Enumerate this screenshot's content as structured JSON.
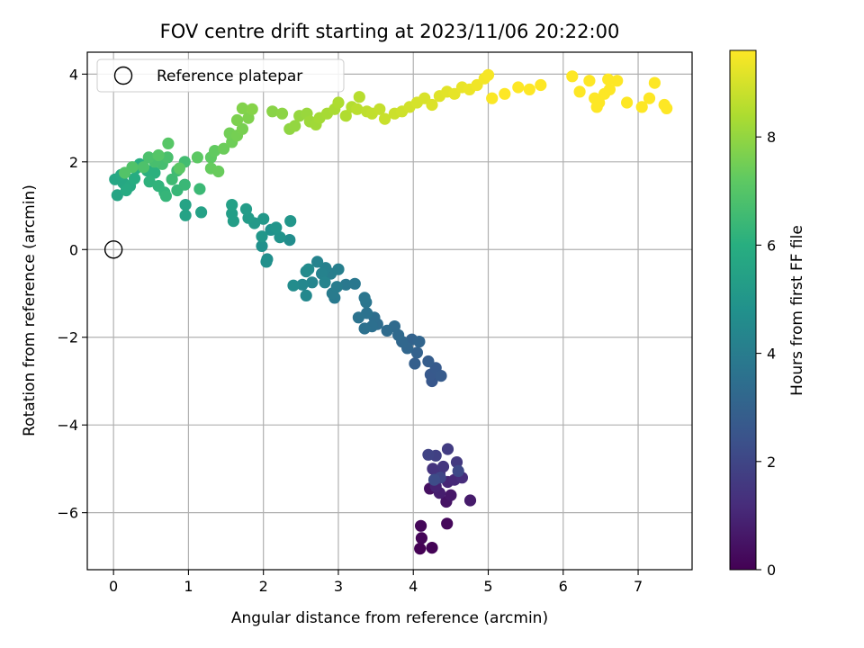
{
  "chart_data": {
    "type": "scatter",
    "title": "FOV centre drift starting at 2023/11/06 20:22:00",
    "xlabel": "Angular distance from reference (arcmin)",
    "ylabel": "Rotation from reference (arcmin)",
    "xlim": [
      -0.35,
      7.72
    ],
    "ylim": [
      -7.3,
      4.5
    ],
    "xticks": [
      0,
      1,
      2,
      3,
      4,
      5,
      6,
      7
    ],
    "yticks": [
      -6,
      -4,
      -2,
      0,
      2,
      4
    ],
    "grid": true,
    "legend": {
      "position": "top-left",
      "entries": [
        "Reference platepar"
      ]
    },
    "reference_point": {
      "label": "Reference platepar",
      "x": 0,
      "y": 0
    },
    "colorbar": {
      "label": "Hours from first FF file",
      "range": [
        0,
        9.6
      ],
      "ticks": [
        0,
        2,
        4,
        6,
        8
      ],
      "colormap": "viridis"
    },
    "points": [
      [
        4.09,
        -6.82,
        0.0
      ],
      [
        4.25,
        -6.8,
        0.05
      ],
      [
        4.11,
        -6.58,
        0.1
      ],
      [
        4.1,
        -6.3,
        0.15
      ],
      [
        4.45,
        -6.25,
        0.2
      ],
      [
        4.22,
        -5.45,
        0.4
      ],
      [
        4.44,
        -5.75,
        0.5
      ],
      [
        4.5,
        -5.6,
        0.6
      ],
      [
        4.76,
        -5.72,
        0.7
      ],
      [
        4.35,
        -5.55,
        0.8
      ],
      [
        4.3,
        -5.4,
        0.9
      ],
      [
        4.46,
        -5.3,
        1.0
      ],
      [
        4.55,
        -5.25,
        1.1
      ],
      [
        4.65,
        -5.2,
        1.2
      ],
      [
        4.35,
        -5.1,
        1.3
      ],
      [
        4.26,
        -5.0,
        1.4
      ],
      [
        4.4,
        -4.95,
        1.5
      ],
      [
        4.58,
        -4.85,
        1.6
      ],
      [
        4.46,
        -4.55,
        1.7
      ],
      [
        4.3,
        -4.7,
        1.8
      ],
      [
        4.2,
        -4.68,
        1.9
      ],
      [
        4.36,
        -5.2,
        2.0
      ],
      [
        4.6,
        -5.05,
        2.1
      ],
      [
        4.28,
        -5.25,
        2.2
      ],
      [
        4.25,
        -3.0,
        2.6
      ],
      [
        4.23,
        -2.85,
        2.65
      ],
      [
        4.3,
        -2.7,
        2.7
      ],
      [
        4.37,
        -2.88,
        2.75
      ],
      [
        4.2,
        -2.55,
        2.8
      ],
      [
        4.02,
        -2.6,
        2.9
      ],
      [
        4.05,
        -2.35,
        3.0
      ],
      [
        3.98,
        -2.05,
        3.05
      ],
      [
        4.08,
        -2.1,
        3.1
      ],
      [
        3.92,
        -2.25,
        3.15
      ],
      [
        3.85,
        -2.1,
        3.2
      ],
      [
        3.8,
        -1.95,
        3.25
      ],
      [
        3.75,
        -1.75,
        3.3
      ],
      [
        3.65,
        -1.85,
        3.35
      ],
      [
        3.52,
        -1.7,
        3.4
      ],
      [
        3.48,
        -1.55,
        3.45
      ],
      [
        3.45,
        -1.75,
        3.5
      ],
      [
        3.35,
        -1.8,
        3.55
      ],
      [
        3.38,
        -1.45,
        3.6
      ],
      [
        3.27,
        -1.55,
        3.65
      ],
      [
        3.37,
        -1.2,
        3.7
      ],
      [
        3.35,
        -1.1,
        3.75
      ],
      [
        3.22,
        -0.78,
        3.8
      ],
      [
        3.1,
        -0.8,
        3.85
      ],
      [
        2.95,
        -1.1,
        3.9
      ],
      [
        2.92,
        -1.0,
        3.95
      ],
      [
        2.98,
        -0.85,
        4.0
      ],
      [
        2.9,
        -0.55,
        4.05
      ],
      [
        3.0,
        -0.45,
        4.1
      ],
      [
        2.83,
        -0.42,
        4.15
      ],
      [
        2.78,
        -0.55,
        4.2
      ],
      [
        2.72,
        -0.28,
        4.25
      ],
      [
        2.82,
        -0.75,
        4.3
      ],
      [
        2.65,
        -0.75,
        4.35
      ],
      [
        2.52,
        -0.8,
        4.4
      ],
      [
        2.57,
        -1.05,
        4.45
      ],
      [
        2.57,
        -0.5,
        4.5
      ],
      [
        2.6,
        -0.45,
        4.55
      ],
      [
        2.4,
        -0.82,
        4.6
      ],
      [
        2.35,
        0.22,
        4.65
      ],
      [
        2.05,
        -0.22,
        4.7
      ],
      [
        2.04,
        -0.28,
        4.75
      ],
      [
        1.98,
        0.08,
        4.8
      ],
      [
        2.1,
        0.45,
        4.85
      ],
      [
        2.22,
        0.28,
        4.9
      ],
      [
        2.17,
        0.5,
        4.95
      ],
      [
        2.36,
        0.65,
        5.0
      ],
      [
        1.98,
        0.3,
        5.05
      ],
      [
        2.0,
        0.7,
        5.1
      ],
      [
        1.88,
        0.6,
        5.15
      ],
      [
        1.8,
        0.72,
        5.2
      ],
      [
        1.77,
        0.92,
        5.25
      ],
      [
        1.6,
        0.65,
        5.3
      ],
      [
        1.58,
        0.82,
        5.35
      ],
      [
        1.58,
        1.02,
        5.4
      ],
      [
        1.17,
        0.85,
        5.45
      ],
      [
        0.96,
        0.78,
        5.5
      ],
      [
        0.96,
        1.02,
        5.55
      ],
      [
        0.05,
        1.24,
        5.6
      ],
      [
        0.02,
        1.6,
        5.65
      ],
      [
        0.13,
        1.52,
        5.7
      ],
      [
        0.1,
        1.7,
        5.75
      ],
      [
        0.22,
        1.45,
        5.8
      ],
      [
        0.17,
        1.35,
        5.85
      ],
      [
        0.28,
        1.62,
        5.9
      ],
      [
        0.3,
        1.85,
        5.95
      ],
      [
        0.35,
        1.95,
        6.0
      ],
      [
        0.45,
        1.8,
        6.05
      ],
      [
        0.55,
        1.75,
        6.1
      ],
      [
        0.48,
        1.55,
        6.15
      ],
      [
        0.6,
        1.45,
        6.2
      ],
      [
        0.68,
        1.3,
        6.25
      ],
      [
        0.7,
        1.22,
        6.3
      ],
      [
        0.85,
        1.35,
        6.35
      ],
      [
        0.95,
        1.48,
        6.4
      ],
      [
        1.15,
        1.38,
        6.45
      ],
      [
        0.78,
        1.6,
        6.5
      ],
      [
        0.85,
        1.8,
        6.55
      ],
      [
        0.95,
        2.0,
        6.6
      ],
      [
        0.65,
        1.95,
        6.65
      ],
      [
        0.55,
        2.0,
        6.7
      ],
      [
        0.72,
        2.1,
        6.75
      ],
      [
        0.47,
        2.1,
        6.8
      ],
      [
        0.4,
        1.88,
        6.85
      ],
      [
        0.25,
        1.88,
        6.9
      ],
      [
        0.15,
        1.75,
        6.95
      ],
      [
        0.6,
        2.15,
        7.0
      ],
      [
        0.73,
        2.42,
        7.05
      ],
      [
        0.88,
        1.85,
        7.1
      ],
      [
        1.12,
        2.1,
        7.15
      ],
      [
        1.3,
        2.1,
        7.2
      ],
      [
        1.35,
        2.25,
        7.25
      ],
      [
        1.3,
        1.85,
        7.3
      ],
      [
        1.4,
        1.78,
        7.35
      ],
      [
        1.47,
        2.3,
        7.4
      ],
      [
        1.58,
        2.45,
        7.45
      ],
      [
        1.55,
        2.65,
        7.5
      ],
      [
        1.65,
        2.6,
        7.55
      ],
      [
        1.72,
        2.75,
        7.6
      ],
      [
        1.65,
        2.95,
        7.65
      ],
      [
        1.8,
        3.0,
        7.7
      ],
      [
        1.72,
        3.22,
        7.75
      ],
      [
        1.85,
        3.2,
        7.8
      ],
      [
        2.12,
        3.15,
        7.85
      ],
      [
        2.25,
        3.1,
        7.9
      ],
      [
        2.35,
        2.75,
        7.95
      ],
      [
        2.42,
        2.82,
        8.0
      ],
      [
        2.48,
        3.05,
        8.05
      ],
      [
        2.58,
        3.1,
        8.1
      ],
      [
        2.62,
        2.92,
        8.15
      ],
      [
        2.7,
        2.85,
        8.2
      ],
      [
        2.75,
        3.0,
        8.25
      ],
      [
        2.85,
        3.1,
        8.3
      ],
      [
        2.95,
        3.2,
        8.35
      ],
      [
        3.0,
        3.35,
        8.4
      ],
      [
        3.1,
        3.05,
        8.45
      ],
      [
        3.18,
        3.25,
        8.5
      ],
      [
        3.28,
        3.48,
        8.55
      ],
      [
        3.25,
        3.2,
        8.6
      ],
      [
        3.38,
        3.15,
        8.65
      ],
      [
        3.45,
        3.1,
        8.7
      ],
      [
        3.55,
        3.2,
        8.75
      ],
      [
        3.62,
        2.98,
        8.8
      ],
      [
        3.75,
        3.1,
        8.85
      ],
      [
        3.85,
        3.15,
        8.9
      ],
      [
        3.95,
        3.25,
        8.95
      ],
      [
        4.05,
        3.35,
        9.0
      ],
      [
        4.15,
        3.45,
        9.05
      ],
      [
        4.25,
        3.3,
        9.1
      ],
      [
        4.35,
        3.5,
        9.15
      ],
      [
        4.45,
        3.6,
        9.2
      ],
      [
        4.55,
        3.55,
        9.25
      ],
      [
        4.65,
        3.7,
        9.3
      ],
      [
        4.75,
        3.65,
        9.35
      ],
      [
        4.85,
        3.75,
        9.4
      ],
      [
        4.95,
        3.9,
        9.45
      ],
      [
        5.0,
        3.98,
        9.5
      ],
      [
        5.05,
        3.45,
        9.55
      ],
      [
        5.22,
        3.55,
        9.6
      ],
      [
        5.4,
        3.7,
        9.62
      ],
      [
        5.55,
        3.65,
        9.65
      ],
      [
        5.7,
        3.75,
        9.68
      ],
      [
        6.12,
        3.95,
        9.7
      ],
      [
        6.22,
        3.6,
        9.72
      ],
      [
        6.35,
        3.85,
        9.74
      ],
      [
        6.45,
        3.25,
        9.76
      ],
      [
        6.55,
        3.55,
        9.78
      ],
      [
        6.62,
        3.65,
        9.8
      ],
      [
        6.72,
        3.85,
        9.82
      ],
      [
        6.85,
        3.35,
        9.84
      ],
      [
        7.05,
        3.25,
        9.86
      ],
      [
        7.15,
        3.45,
        9.88
      ],
      [
        7.22,
        3.8,
        9.9
      ],
      [
        7.35,
        3.3,
        9.95
      ],
      [
        7.38,
        3.22,
        10.0
      ],
      [
        6.42,
        3.45,
        9.75
      ],
      [
        6.48,
        3.35,
        9.76
      ],
      [
        6.6,
        3.88,
        9.79
      ]
    ]
  }
}
